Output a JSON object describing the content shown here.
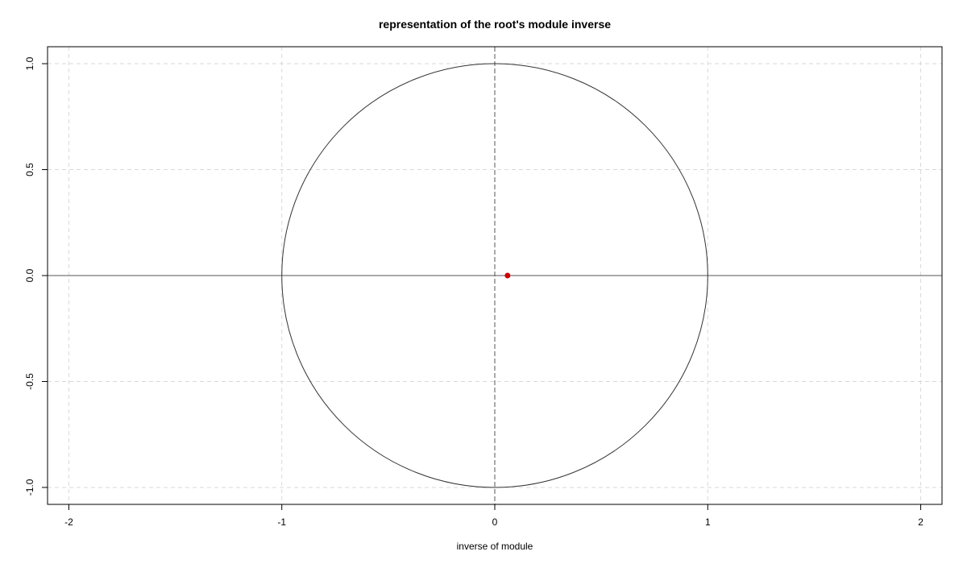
{
  "chart_data": {
    "type": "scatter",
    "title": "representation of the root's module inverse",
    "xlabel": "inverse of module",
    "ylabel": "",
    "xlim": [
      -2.1,
      2.1
    ],
    "ylim": [
      -1.08,
      1.08
    ],
    "x_ticks": [
      -2,
      -1,
      0,
      1,
      2
    ],
    "y_ticks": [
      -1.0,
      -0.5,
      0.0,
      0.5,
      1.0
    ],
    "x_tick_labels": [
      "-2",
      "-1",
      "0",
      "1",
      "2"
    ],
    "y_tick_labels": [
      "-1.0",
      "-0.5",
      "0.0",
      "0.5",
      "1.0"
    ],
    "grid": true,
    "grid_style": "dashed",
    "reference_lines": {
      "horizontal_at": 0,
      "vertical_at": 0
    },
    "unit_circle": {
      "center": [
        0,
        0
      ],
      "radius": 1
    },
    "points": [
      {
        "x": 0.06,
        "y": 0.0
      }
    ],
    "colors": {
      "points": "#cc0000",
      "circle": "#333333",
      "grid": "#d9d9d9",
      "reference": "#555555"
    }
  }
}
